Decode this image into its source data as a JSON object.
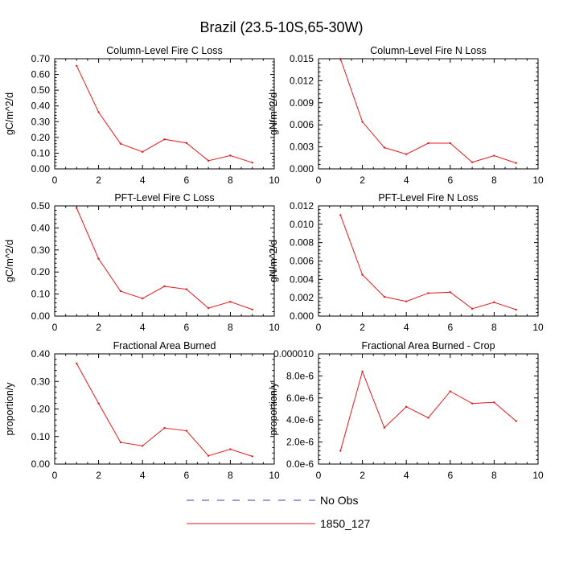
{
  "figure_title": "Brazil (23.5-10S,65-30W)",
  "legend": [
    {
      "label": "No Obs",
      "color": "#3f3fa6",
      "dash": "dashed"
    },
    {
      "label": "1850_127",
      "color": "#e31a1c",
      "dash": "solid"
    }
  ],
  "chart_data": [
    {
      "type": "line",
      "title": "Column-Level Fire C Loss",
      "ylabel": "gC/m^2/d",
      "xlim": [
        0,
        10
      ],
      "ylim": [
        0,
        0.7
      ],
      "x_ticks": [
        0,
        2,
        4,
        6,
        8,
        10
      ],
      "y_ticks": [
        "0.00",
        "0.10",
        "0.20",
        "0.30",
        "0.40",
        "0.50",
        "0.60",
        "0.70"
      ],
      "y_tick_values": [
        0,
        0.1,
        0.2,
        0.3,
        0.4,
        0.5,
        0.6,
        0.7
      ],
      "series": [
        {
          "name": "1850_127",
          "color": "#e31a1c",
          "x": [
            1,
            2,
            3,
            4,
            5,
            6,
            7,
            8,
            9
          ],
          "values": [
            0.655,
            0.36,
            0.16,
            0.108,
            0.188,
            0.165,
            0.052,
            0.085,
            0.04
          ]
        }
      ]
    },
    {
      "type": "line",
      "title": "Column-Level Fire N Loss",
      "ylabel": "gN/m^2/d",
      "xlim": [
        0,
        10
      ],
      "ylim": [
        0,
        0.015
      ],
      "x_ticks": [
        0,
        2,
        4,
        6,
        8,
        10
      ],
      "y_ticks": [
        "0.000",
        "0.003",
        "0.006",
        "0.009",
        "0.012",
        "0.015"
      ],
      "y_tick_values": [
        0,
        0.003,
        0.006,
        0.009,
        0.012,
        0.015
      ],
      "series": [
        {
          "name": "1850_127",
          "color": "#e31a1c",
          "x": [
            1,
            2,
            3,
            4,
            5,
            6,
            7,
            8,
            9
          ],
          "values": [
            0.015,
            0.0064,
            0.0029,
            0.002,
            0.0035,
            0.0035,
            0.0009,
            0.0018,
            0.0008
          ]
        }
      ]
    },
    {
      "type": "line",
      "title": "PFT-Level Fire C Loss",
      "ylabel": "gC/m^2/d",
      "xlim": [
        0,
        10
      ],
      "ylim": [
        0,
        0.5
      ],
      "x_ticks": [
        0,
        2,
        4,
        6,
        8,
        10
      ],
      "y_ticks": [
        "0.00",
        "0.10",
        "0.20",
        "0.30",
        "0.40",
        "0.50"
      ],
      "y_tick_values": [
        0,
        0.1,
        0.2,
        0.3,
        0.4,
        0.5
      ],
      "series": [
        {
          "name": "1850_127",
          "color": "#e31a1c",
          "x": [
            1,
            2,
            3,
            4,
            5,
            6,
            7,
            8,
            9
          ],
          "values": [
            0.49,
            0.26,
            0.113,
            0.08,
            0.135,
            0.122,
            0.036,
            0.065,
            0.03
          ]
        }
      ]
    },
    {
      "type": "line",
      "title": "PFT-Level Fire N Loss",
      "ylabel": "gN/m^2/d",
      "xlim": [
        0,
        10
      ],
      "ylim": [
        0,
        0.012
      ],
      "x_ticks": [
        0,
        2,
        4,
        6,
        8,
        10
      ],
      "y_ticks": [
        "0.000",
        "0.002",
        "0.004",
        "0.006",
        "0.008",
        "0.010",
        "0.012"
      ],
      "y_tick_values": [
        0,
        0.002,
        0.004,
        0.006,
        0.008,
        0.01,
        0.012
      ],
      "series": [
        {
          "name": "1850_127",
          "color": "#e31a1c",
          "x": [
            1,
            2,
            3,
            4,
            5,
            6,
            7,
            8,
            9
          ],
          "values": [
            0.011,
            0.0045,
            0.0021,
            0.0016,
            0.0025,
            0.0026,
            0.0008,
            0.0015,
            0.0007
          ]
        }
      ]
    },
    {
      "type": "line",
      "title": "Fractional Area Burned",
      "ylabel": "proportion/y",
      "xlim": [
        0,
        10
      ],
      "ylim": [
        0,
        0.4
      ],
      "x_ticks": [
        0,
        2,
        4,
        6,
        8,
        10
      ],
      "y_ticks": [
        "0.00",
        "0.10",
        "0.20",
        "0.30",
        "0.40"
      ],
      "y_tick_values": [
        0,
        0.1,
        0.2,
        0.3,
        0.4
      ],
      "series": [
        {
          "name": "1850_127",
          "color": "#e31a1c",
          "x": [
            1,
            2,
            3,
            4,
            5,
            6,
            7,
            8,
            9
          ],
          "values": [
            0.365,
            0.22,
            0.079,
            0.066,
            0.131,
            0.121,
            0.03,
            0.054,
            0.028
          ]
        }
      ]
    },
    {
      "type": "line",
      "title": "Fractional Area Burned - Crop",
      "ylabel": "proportion/y",
      "xlim": [
        0,
        10
      ],
      "ylim": [
        0,
        1e-05
      ],
      "x_ticks": [
        0,
        2,
        4,
        6,
        8,
        10
      ],
      "y_ticks": [
        "0.0e-6",
        "2.0e-6",
        "4.0e-6",
        "6.0e-6",
        "8.0e-6",
        "0.000010"
      ],
      "y_tick_values": [
        0,
        2e-06,
        4e-06,
        6e-06,
        8e-06,
        1e-05
      ],
      "series": [
        {
          "name": "1850_127",
          "color": "#e31a1c",
          "x": [
            1,
            2,
            3,
            4,
            5,
            6,
            7,
            8,
            9
          ],
          "values": [
            1.2e-06,
            8.4e-06,
            3.3e-06,
            5.2e-06,
            4.2e-06,
            6.6e-06,
            5.5e-06,
            5.6e-06,
            3.9e-06
          ]
        }
      ]
    }
  ]
}
